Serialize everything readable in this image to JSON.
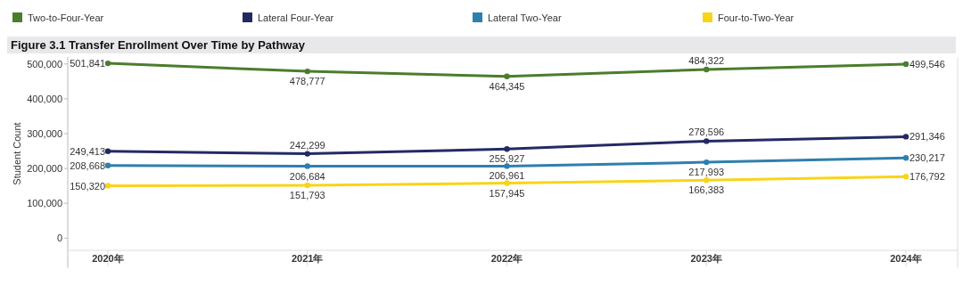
{
  "chart_data": {
    "type": "line",
    "title": "Figure 3.1 Transfer Enrollment Over Time by Pathway",
    "ylabel": "Student Count",
    "categories": [
      "2020年",
      "2021年",
      "2022年",
      "2023年",
      "2024年"
    ],
    "series": [
      {
        "name": "Two-to-Four-Year",
        "color": "#4a7d2c",
        "values": [
          501841,
          478777,
          464345,
          484322,
          499546
        ],
        "value_labels": [
          "501,841",
          "478,777",
          "464,345",
          "484,322",
          "499,546"
        ]
      },
      {
        "name": "Lateral Four-Year",
        "color": "#232a63",
        "values": [
          249413,
          242299,
          255927,
          278596,
          291346
        ],
        "value_labels": [
          "249,413",
          "242,299",
          "255,927",
          "278,596",
          "291,346"
        ]
      },
      {
        "name": "Lateral Two-Year",
        "color": "#2f7fae",
        "values": [
          208668,
          206684,
          206961,
          217993,
          230217
        ],
        "value_labels": [
          "208,668",
          "206,684",
          "206,961",
          "217,993",
          "230,217"
        ]
      },
      {
        "name": "Four-to-Two-Year",
        "color": "#f8d418",
        "values": [
          150320,
          151793,
          157945,
          166383,
          176792
        ],
        "value_labels": [
          "150,320",
          "151,793",
          "157,945",
          "166,383",
          "176,792"
        ]
      }
    ],
    "ylim": [
      -35000,
      520000
    ],
    "yticks": [
      0,
      {
        "value": 100000,
        "label": "100,000"
      },
      {
        "value": 200000,
        "label": "200,000"
      },
      {
        "value": 300000,
        "label": "300,000"
      },
      {
        "value": 400000,
        "label": "400,000"
      },
      {
        "value": 500000,
        "label": "500,000"
      }
    ],
    "legend": "top",
    "marker": "circle",
    "line_style": "solid"
  }
}
